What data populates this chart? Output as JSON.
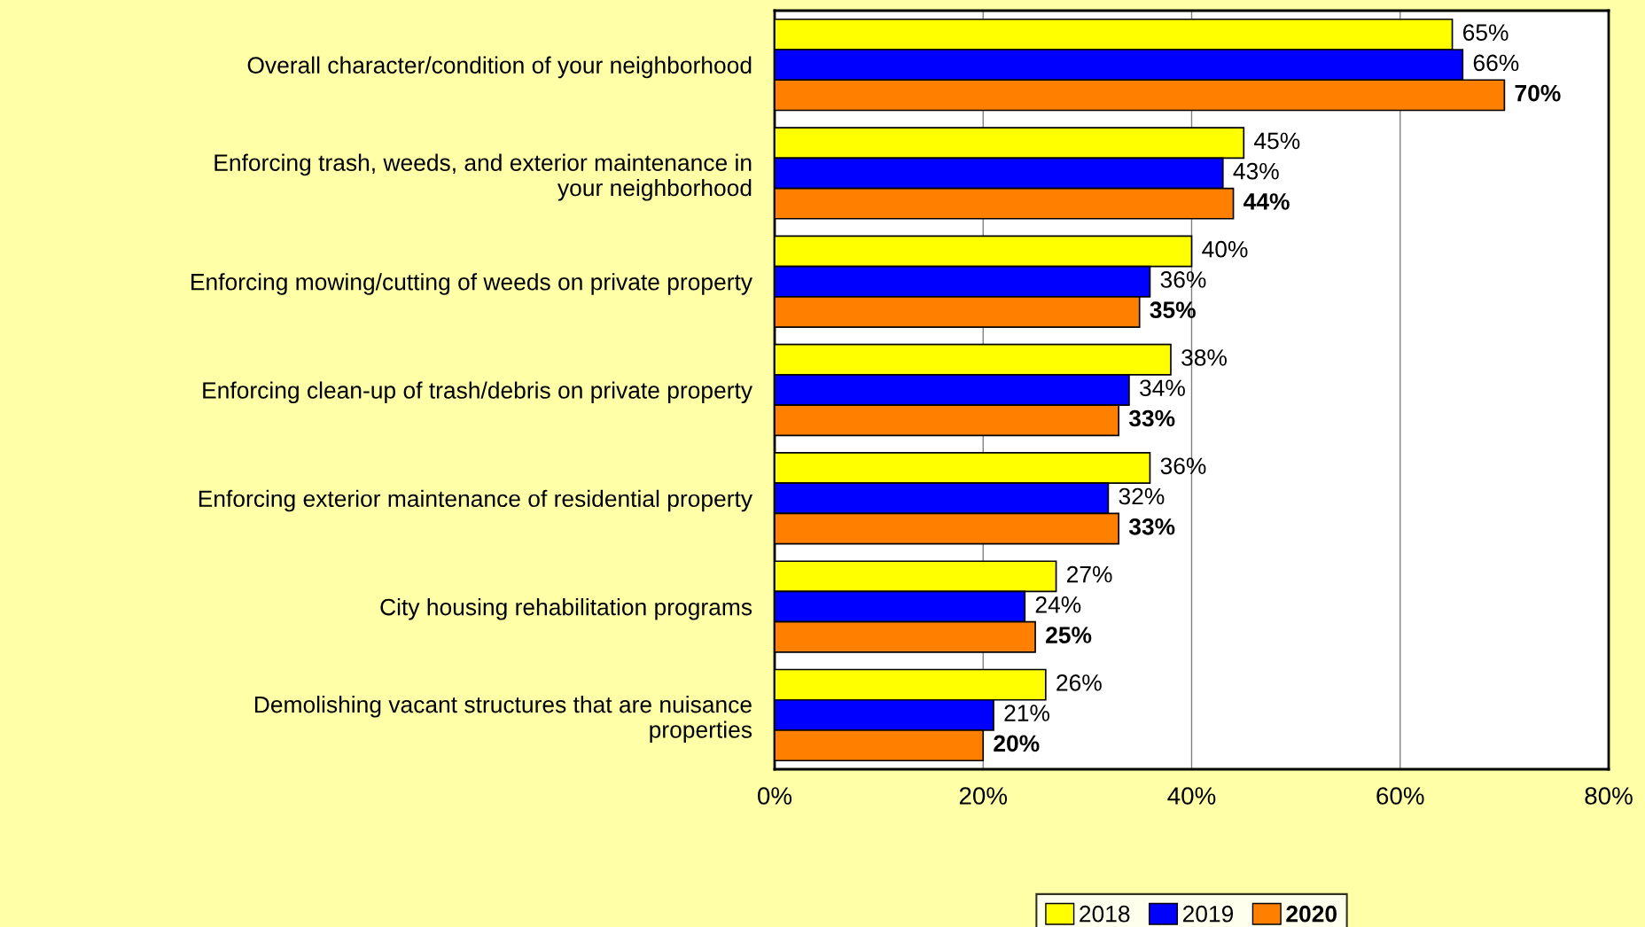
{
  "chart_data": {
    "type": "bar",
    "orientation": "horizontal",
    "categories": [
      "Overall character/condition of your neighborhood",
      "Enforcing trash, weeds, and exterior maintenance in\nyour neighborhood",
      "Enforcing mowing/cutting of weeds on private property",
      "Enforcing clean-up of trash/debris on private property",
      "Enforcing exterior maintenance of residential property",
      "City housing rehabilitation programs",
      "Demolishing vacant structures that are nuisance\nproperties"
    ],
    "series": [
      {
        "name": "2018",
        "color": "#ffff00",
        "values": [
          65,
          45,
          40,
          38,
          36,
          27,
          26
        ],
        "value_labels": [
          "65%",
          "45%",
          "40%",
          "38%",
          "36%",
          "27%",
          "26%"
        ]
      },
      {
        "name": "2019",
        "color": "#0000ff",
        "values": [
          66,
          43,
          36,
          34,
          32,
          24,
          21
        ],
        "value_labels": [
          "66%",
          "43%",
          "36%",
          "34%",
          "32%",
          "24%",
          "21%"
        ]
      },
      {
        "name": "2020",
        "color": "#ff8000",
        "values": [
          70,
          44,
          35,
          33,
          33,
          25,
          20
        ],
        "value_labels": [
          "70%",
          "44%",
          "35%",
          "33%",
          "33%",
          "25%",
          "20%"
        ]
      }
    ],
    "xlim": [
      0,
      80
    ],
    "xticks": [
      {
        "value": 0,
        "label": "0%"
      },
      {
        "value": 20,
        "label": "20%"
      },
      {
        "value": 40,
        "label": "40%"
      },
      {
        "value": 60,
        "label": "60%"
      },
      {
        "value": 80,
        "label": "80%"
      }
    ],
    "grid": "x",
    "legend": "bottom"
  }
}
